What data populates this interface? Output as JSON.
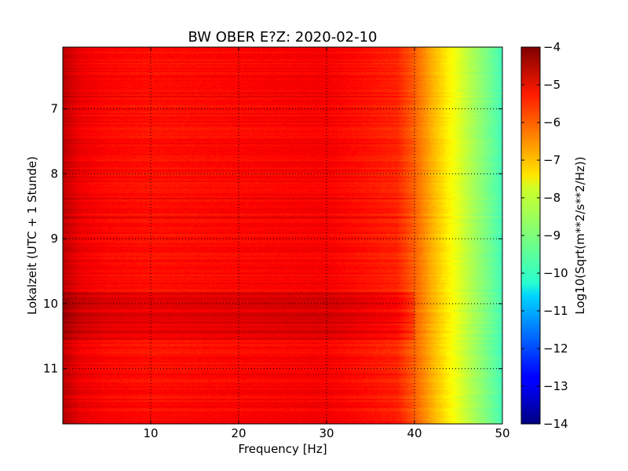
{
  "chart_data": {
    "type": "heatmap",
    "title": "BW OBER E?Z: 2020-02-10",
    "xlabel": "Frequency [Hz]",
    "ylabel": "Lokalzeit (UTC + 1 Stunde)",
    "xlim": [
      0,
      50
    ],
    "ylim": [
      11.85,
      6.05
    ],
    "x_ticks": [
      10,
      20,
      30,
      40,
      50
    ],
    "y_ticks": [
      7,
      8,
      9,
      10,
      11
    ],
    "grid": true,
    "colorbar": {
      "label": "Log10(Sqrt(m**2/s**2/Hz))",
      "range": [
        -14,
        -4
      ],
      "ticks": [
        -4,
        -5,
        -6,
        -7,
        -8,
        -9,
        -10,
        -11,
        -12,
        -13,
        -14
      ],
      "tick_labels": [
        "−4",
        "−5",
        "−6",
        "−7",
        "−8",
        "−9",
        "−10",
        "−11",
        "−12",
        "−13",
        "−14"
      ],
      "colormap": "jet"
    },
    "frequency_profile": {
      "frequency_hz": [
        0,
        1,
        2,
        5,
        10,
        20,
        30,
        38,
        40,
        42,
        44,
        46,
        48,
        50
      ],
      "log10_amplitude": [
        -4.6,
        -4.9,
        -5.1,
        -5.3,
        -5.4,
        -5.3,
        -5.2,
        -5.6,
        -6.2,
        -7.0,
        -7.7,
        -8.4,
        -9.0,
        -9.6
      ]
    },
    "strong_periods": [
      {
        "from": 9.82,
        "to": 10.55,
        "delta": 0.3
      }
    ],
    "quiet_band": [
      40,
      50
    ]
  }
}
